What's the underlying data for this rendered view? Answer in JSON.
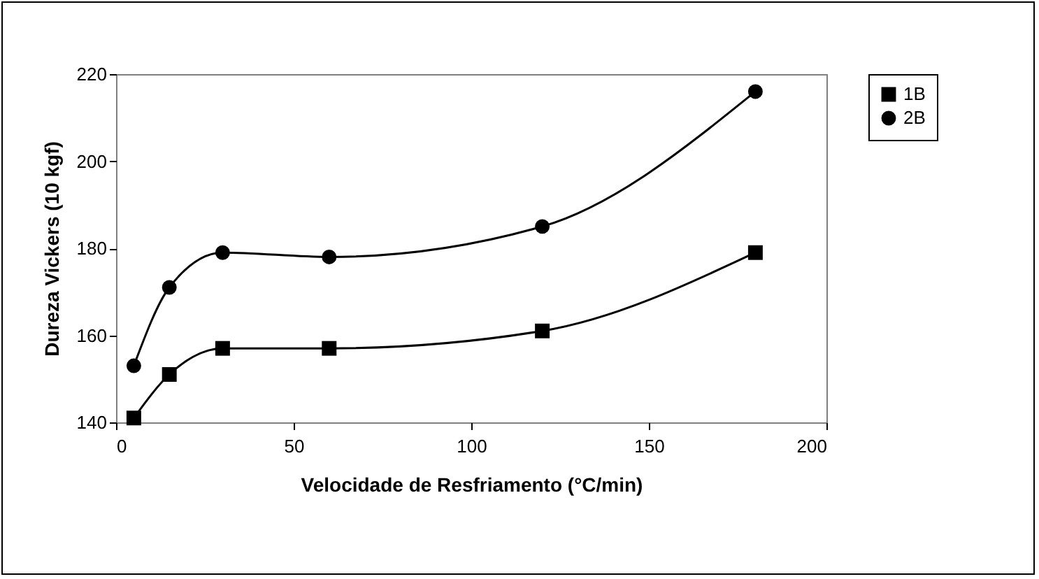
{
  "chart_data": {
    "type": "line",
    "xlabel": "Velocidade de Resfriamento (°C/min)",
    "ylabel": "Dureza Vickers (10 kgf)",
    "x": [
      5,
      15,
      30,
      60,
      120,
      180
    ],
    "series": [
      {
        "name": "1B",
        "color": "#000000",
        "marker": "square",
        "values": [
          141,
          151,
          157,
          157,
          161,
          179
        ]
      },
      {
        "name": "2B",
        "color": "#000000",
        "marker": "circle",
        "values": [
          153,
          171,
          179,
          178,
          185,
          216
        ]
      }
    ],
    "xlim": [
      0,
      200
    ],
    "xticks": [
      0,
      50,
      100,
      150,
      200
    ],
    "ylim": [
      140,
      220
    ],
    "yticks": [
      140,
      160,
      180,
      200,
      220
    ],
    "grid": false,
    "legend": "right",
    "line_style": "solid"
  }
}
